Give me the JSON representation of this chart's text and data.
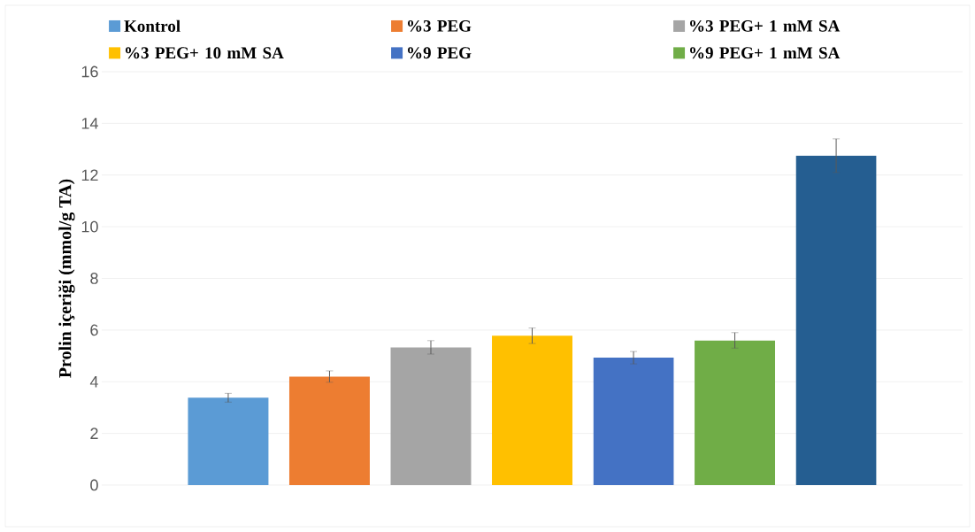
{
  "chart_data": {
    "type": "bar",
    "ylabel": "Prolin içeriği (mmol/g TA)",
    "categories": [
      null
    ],
    "series": [
      {
        "name": "Kontrol",
        "color": "#5b9bd5",
        "values": [
          3.38
        ],
        "errors": [
          0.17
        ]
      },
      {
        "name": "%3 PEG",
        "color": "#ed7d31",
        "values": [
          4.2
        ],
        "errors": [
          0.22
        ]
      },
      {
        "name": "%3 PEG+ 1 mM SA",
        "color": "#a5a5a5",
        "values": [
          5.33
        ],
        "errors": [
          0.26
        ]
      },
      {
        "name": "%3 PEG+ 10 mM SA",
        "color": "#ffc000",
        "values": [
          5.78
        ],
        "errors": [
          0.3
        ]
      },
      {
        "name": "%9 PEG",
        "color": "#4472c4",
        "values": [
          4.93
        ],
        "errors": [
          0.24
        ]
      },
      {
        "name": "%9 PEG+ 1 mM SA",
        "color": "#70ad47",
        "values": [
          5.6
        ],
        "errors": [
          0.3
        ]
      },
      {
        "color": "#255e91",
        "values": [
          12.75
        ],
        "errors": [
          0.65
        ]
      }
    ],
    "ylim": [
      0,
      16
    ],
    "yticks": [
      0,
      2,
      4,
      6,
      8,
      10,
      12,
      14,
      16
    ],
    "grid": "y",
    "legend": "top"
  }
}
